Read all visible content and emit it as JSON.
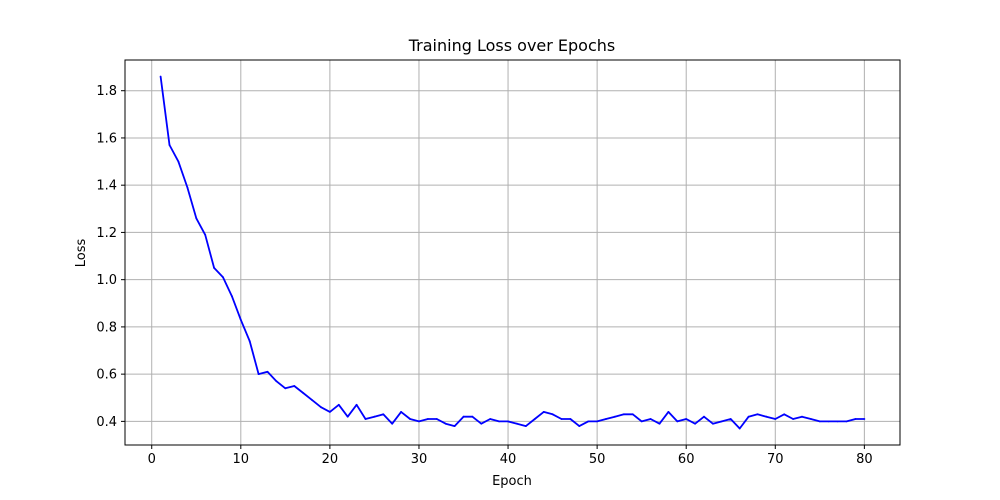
{
  "chart_data": {
    "type": "line",
    "title": "Training Loss over Epochs",
    "xlabel": "Epoch",
    "ylabel": "Loss",
    "xlim": [
      -3,
      84
    ],
    "ylim": [
      0.3,
      1.93
    ],
    "xticks": [
      0,
      10,
      20,
      30,
      40,
      50,
      60,
      70,
      80
    ],
    "yticks": [
      0.4,
      0.6,
      0.8,
      1.0,
      1.2,
      1.4,
      1.6,
      1.8
    ],
    "ytick_labels": [
      "0.4",
      "0.6",
      "0.8",
      "1.0",
      "1.2",
      "1.4",
      "1.6",
      "1.8"
    ],
    "grid": true,
    "series": [
      {
        "color": "#0000ff",
        "x": [
          1,
          2,
          3,
          4,
          5,
          6,
          7,
          8,
          9,
          10,
          11,
          12,
          13,
          14,
          15,
          16,
          17,
          18,
          19,
          20,
          21,
          22,
          23,
          24,
          25,
          26,
          27,
          28,
          29,
          30,
          31,
          32,
          33,
          34,
          35,
          36,
          37,
          38,
          39,
          40,
          41,
          42,
          43,
          44,
          45,
          46,
          47,
          48,
          49,
          50,
          51,
          52,
          53,
          54,
          55,
          56,
          57,
          58,
          59,
          60,
          61,
          62,
          63,
          64,
          65,
          66,
          67,
          68,
          69,
          70,
          71,
          72,
          73,
          74,
          75,
          76,
          77,
          78,
          79,
          80
        ],
        "y": [
          1.86,
          1.57,
          1.5,
          1.39,
          1.26,
          1.19,
          1.05,
          1.01,
          0.93,
          0.83,
          0.74,
          0.6,
          0.61,
          0.57,
          0.54,
          0.55,
          0.52,
          0.49,
          0.46,
          0.44,
          0.47,
          0.42,
          0.47,
          0.41,
          0.42,
          0.43,
          0.39,
          0.44,
          0.41,
          0.4,
          0.41,
          0.41,
          0.39,
          0.38,
          0.42,
          0.42,
          0.39,
          0.41,
          0.4,
          0.4,
          0.39,
          0.38,
          0.41,
          0.44,
          0.43,
          0.41,
          0.41,
          0.38,
          0.4,
          0.4,
          0.41,
          0.42,
          0.43,
          0.43,
          0.4,
          0.41,
          0.39,
          0.44,
          0.4,
          0.41,
          0.39,
          0.42,
          0.39,
          0.4,
          0.41,
          0.37,
          0.42,
          0.43,
          0.42,
          0.41,
          0.43,
          0.41,
          0.42,
          0.41,
          0.4,
          0.4,
          0.4,
          0.4,
          0.41,
          0.41
        ]
      }
    ]
  }
}
